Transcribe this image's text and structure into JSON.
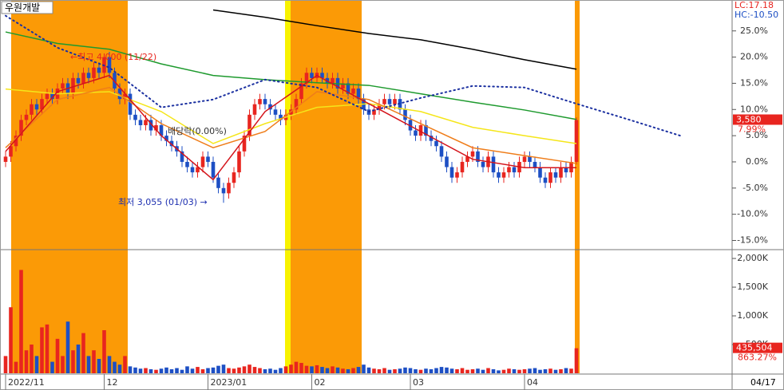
{
  "chart_data": [
    {
      "type": "candlestick",
      "title": "우원개발",
      "categories": [
        "2022/11",
        null,
        null,
        null,
        null,
        null,
        null,
        null,
        null,
        null,
        null,
        null,
        null,
        null,
        null,
        null,
        null,
        null,
        null,
        "12",
        null,
        null,
        null,
        null,
        null,
        null,
        null,
        null,
        null,
        null,
        null,
        null,
        null,
        null,
        null,
        null,
        null,
        null,
        null,
        "2023/01",
        null,
        null,
        null,
        null,
        null,
        null,
        null,
        null,
        null,
        null,
        null,
        null,
        null,
        null,
        null,
        null,
        null,
        null,
        null,
        "02",
        null,
        null,
        null,
        null,
        null,
        null,
        null,
        null,
        null,
        null,
        null,
        null,
        null,
        null,
        null,
        null,
        null,
        null,
        "03",
        null,
        null,
        null,
        null,
        null,
        null,
        null,
        null,
        null,
        null,
        null,
        null,
        null,
        null,
        null,
        null,
        null,
        null,
        null,
        null,
        null,
        "04",
        null,
        null,
        null,
        null,
        null,
        null,
        null,
        null,
        null,
        null
      ],
      "open": [
        0,
        1,
        3,
        5,
        8,
        9,
        11,
        10,
        12,
        13,
        12,
        14,
        15,
        13,
        16,
        15,
        17,
        16,
        18,
        17,
        20,
        17,
        14,
        12,
        13,
        9,
        8,
        7,
        8,
        6,
        7,
        5,
        4,
        3,
        2,
        0,
        -1,
        -2,
        -1,
        1,
        0,
        -3,
        -5,
        -6,
        -4,
        -2,
        2,
        5,
        9,
        11,
        12,
        11,
        10,
        9,
        8,
        9,
        10,
        12,
        15,
        17,
        16,
        17,
        16,
        15,
        16,
        14,
        15,
        13,
        14,
        12,
        10,
        9,
        10,
        11,
        12,
        11,
        12,
        10,
        8,
        6,
        5,
        7,
        5,
        4,
        3,
        1,
        -1,
        -3,
        -2,
        0,
        1,
        2,
        0,
        -1,
        1,
        -2,
        -3,
        -2,
        -1,
        -2,
        0,
        1,
        0,
        -1,
        -3,
        -4,
        -2,
        -3,
        -1,
        -2,
        0
      ],
      "high": [
        2,
        4,
        6,
        9,
        10,
        12,
        12,
        13,
        14,
        14,
        15,
        16,
        16,
        17,
        17,
        18,
        18,
        19,
        19,
        20.7,
        21,
        18,
        15,
        14,
        14,
        10,
        9,
        9,
        9,
        8,
        8,
        6,
        5,
        4,
        3,
        1,
        0,
        0,
        2,
        2,
        1,
        -2,
        -4,
        -3,
        -1,
        3,
        6,
        10,
        12,
        13,
        13,
        12,
        11,
        10,
        10,
        11,
        13,
        16,
        18,
        18,
        18,
        18,
        17,
        17,
        17,
        16,
        16,
        15,
        15,
        13,
        11,
        11,
        12,
        13,
        13,
        13,
        13,
        11,
        9,
        7,
        8,
        8,
        6,
        5,
        4,
        2,
        0,
        -1,
        1,
        2,
        3,
        3,
        1,
        2,
        2,
        -1,
        -1,
        0,
        0,
        1,
        2,
        2,
        1,
        0,
        -2,
        -1,
        -1,
        0,
        0,
        1,
        8.5
      ],
      "low": [
        -1,
        0,
        2,
        4,
        7,
        8,
        9,
        9,
        11,
        11,
        11,
        13,
        12,
        12,
        14,
        14,
        15,
        15,
        16,
        16,
        16,
        13,
        11,
        11,
        8,
        7,
        6,
        6,
        5,
        5,
        4,
        3,
        2,
        1,
        -1,
        -2,
        -3,
        -3,
        -2,
        -1,
        -4,
        -6,
        -7.8,
        -7,
        -5,
        -3,
        1,
        4,
        8,
        10,
        10,
        9,
        8,
        7,
        7,
        8,
        9,
        11,
        14,
        15,
        15,
        15,
        14,
        14,
        13,
        13,
        12,
        12,
        11,
        9,
        8,
        8,
        9,
        10,
        10,
        10,
        9,
        7,
        5,
        4,
        4,
        4,
        3,
        2,
        0,
        -2,
        -4,
        -4,
        -3,
        -1,
        0,
        -1,
        -2,
        -2,
        -3,
        -4,
        -4,
        -3,
        -3,
        -3,
        -1,
        -1,
        -2,
        -4,
        -5,
        -5,
        -4,
        -4,
        -3,
        -3,
        -0.5
      ],
      "close": [
        1,
        3,
        5,
        8,
        9,
        11,
        10,
        12,
        13,
        12,
        14,
        15,
        13,
        16,
        15,
        17,
        16,
        18,
        17,
        20,
        17,
        14,
        12,
        13,
        9,
        8,
        7,
        8,
        6,
        7,
        5,
        4,
        3,
        2,
        0,
        -1,
        -2,
        -1,
        1,
        0,
        -3,
        -5,
        -6,
        -4,
        -2,
        2,
        5,
        9,
        11,
        12,
        11,
        10,
        9,
        8,
        9,
        10,
        12,
        15,
        17,
        16,
        17,
        16,
        15,
        16,
        14,
        15,
        13,
        14,
        12,
        10,
        9,
        10,
        11,
        12,
        11,
        12,
        10,
        8,
        6,
        5,
        7,
        5,
        4,
        3,
        1,
        -1,
        -3,
        -2,
        0,
        1,
        2,
        0,
        -1,
        1,
        -2,
        -3,
        -2,
        -1,
        -2,
        0,
        1,
        0,
        -1,
        -3,
        -4,
        -2,
        -3,
        -1,
        -2,
        0,
        7.99
      ],
      "up_color": "#e8251f",
      "down_color": "#1d4fc4",
      "ylim": [
        -16.6,
        30.9
      ],
      "yticks": [
        {
          "value": 25,
          "label": "25.0%"
        },
        {
          "value": 20,
          "label": "20.0%"
        },
        {
          "value": 15,
          "label": "15.0%"
        },
        {
          "value": 10,
          "label": "10.0%"
        },
        {
          "value": 5,
          "label": "5.0%"
        },
        {
          "value": 0,
          "label": "0.0%"
        },
        {
          "value": -5,
          "label": "-5.0%"
        },
        {
          "value": -10,
          "label": "-10.0%"
        },
        {
          "value": -15,
          "label": "-15.0%"
        }
      ],
      "lines": [
        {
          "color": "#000000",
          "values": [
            null,
            null,
            null,
            null,
            29,
            27.6,
            26,
            24.5,
            23.3,
            21.5,
            19.5,
            17.7
          ]
        },
        {
          "color": "#1e9a2e",
          "values": [
            24.8,
            22.6,
            21.5,
            18.7,
            16.5,
            15.7,
            15.1,
            14.6,
            13,
            11.4,
            9.9,
            8.1
          ]
        },
        {
          "color": "#f5e61a",
          "values": [
            13.9,
            13,
            13.4,
            9.6,
            3.5,
            7.3,
            10.4,
            11.1,
            9.6,
            6.6,
            5,
            3.5
          ]
        },
        {
          "color": "#ef7d1a",
          "values": [
            2.7,
            11.9,
            14.2,
            7.3,
            2.7,
            5.8,
            13.4,
            11.9,
            7.3,
            2.7,
            1.2,
            -0.3
          ]
        },
        {
          "color": "#d4141b",
          "values": [
            2,
            13.4,
            16.5,
            5,
            -3.4,
            9.6,
            16.5,
            11.1,
            5.8,
            0.5,
            -1.1,
            -1.1
          ]
        },
        {
          "color": "#1a2fa0",
          "style": "dotted",
          "values": [
            27.9,
            21.8,
            18,
            10.4,
            11.9,
            15.7,
            14.2,
            9.6,
            12.2,
            14.5,
            14.2,
            11.1,
            8.1,
            5
          ]
        }
      ],
      "annotations": [
        {
          "text": "←최고 4,000 (11/22)",
          "color": "#e8251f"
        },
        {
          "text": "배당락(0.00%)",
          "color": "#333333"
        },
        {
          "text": "최저 3,055 (01/03) →",
          "color": "#1d2fb0"
        }
      ],
      "lc_label": "LC:17.18",
      "hc_label": "HC:-10.50",
      "price_label": "3,580",
      "change_label": "7.99%",
      "date_label": "04/17"
    },
    {
      "type": "bar",
      "values": [
        300000,
        1150000,
        200000,
        1800000,
        400000,
        500000,
        300000,
        800000,
        850000,
        200000,
        600000,
        300000,
        900000,
        400000,
        500000,
        700000,
        300000,
        400000,
        250000,
        750000,
        300000,
        200000,
        150000,
        300000,
        120000,
        100000,
        80000,
        90000,
        70000,
        60000,
        80000,
        100000,
        70000,
        90000,
        60000,
        120000,
        80000,
        110000,
        70000,
        90000,
        100000,
        130000,
        150000,
        90000,
        80000,
        100000,
        120000,
        150000,
        110000,
        90000,
        70000,
        80000,
        60000,
        90000,
        120000,
        150000,
        200000,
        180000,
        130000,
        120000,
        140000,
        110000,
        90000,
        120000,
        100000,
        80000,
        70000,
        90000,
        110000,
        150000,
        100000,
        80000,
        70000,
        90000,
        60000,
        70000,
        80000,
        100000,
        90000,
        70000,
        60000,
        80000,
        70000,
        90000,
        110000,
        100000,
        80000,
        70000,
        90000,
        60000,
        70000,
        80000,
        60000,
        90000,
        70000,
        50000,
        60000,
        80000,
        70000,
        60000,
        70000,
        80000,
        90000,
        60000,
        70000,
        80000,
        60000,
        70000,
        90000,
        80000,
        435504
      ],
      "value_labels_last": "435,504",
      "change_label": "863.27%",
      "ylim": [
        0,
        2140000
      ],
      "yticks": [
        {
          "value": 2000000,
          "label": "2,000K"
        },
        {
          "value": 1500000,
          "label": "1,500K"
        },
        {
          "value": 1000000,
          "label": "1,000K"
        },
        {
          "value": 500000,
          "label": "500K"
        }
      ]
    }
  ]
}
